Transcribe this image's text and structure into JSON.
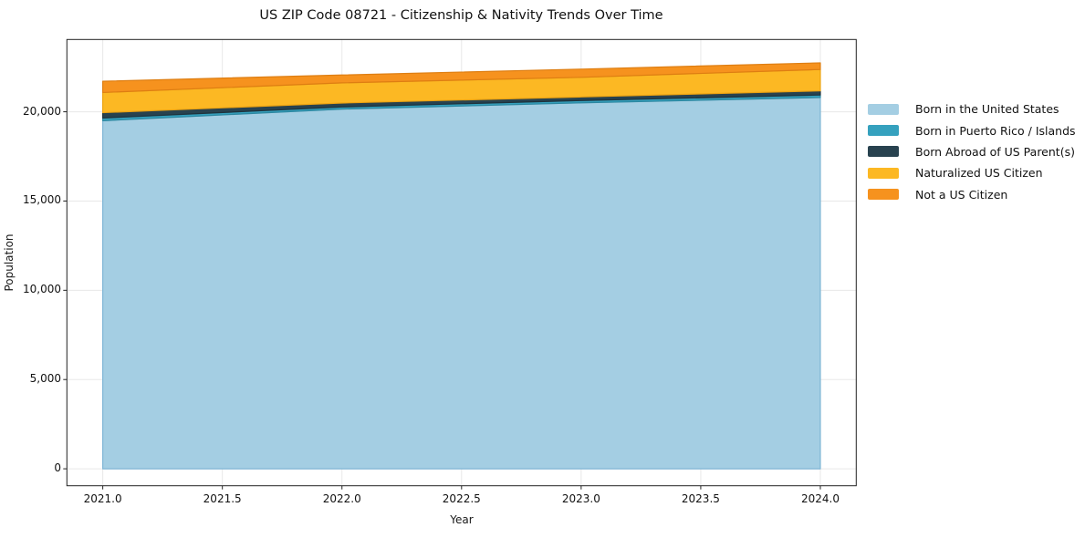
{
  "title": "US ZIP Code 08721 - Citizenship & Nativity Trends Over Time",
  "chart_data": {
    "type": "area",
    "stacked": true,
    "title": "US ZIP Code 08721 - Citizenship & Nativity Trends Over Time",
    "xlabel": "Year",
    "ylabel": "Population",
    "x": [
      2021,
      2022,
      2023,
      2024
    ],
    "series": [
      {
        "name": "Born in the United States",
        "color": "#A4CEE3",
        "edge": "#7FB6D5",
        "values": [
          19500,
          20150,
          20500,
          20800
        ]
      },
      {
        "name": "Born in Puerto Rico / Islands",
        "color": "#35A1BE",
        "edge": "#2B87A0",
        "values": [
          150,
          120,
          130,
          140
        ]
      },
      {
        "name": "Born Abroad of US Parent(s)",
        "color": "#28424F",
        "edge": "#1E333D",
        "values": [
          300,
          220,
          200,
          230
        ]
      },
      {
        "name": "Naturalized US Citizen",
        "color": "#FCB823",
        "edge": "#ECA313",
        "values": [
          1130,
          1130,
          1100,
          1200
        ]
      },
      {
        "name": "Not a US Citizen",
        "color": "#F6921E",
        "edge": "#DE7E12",
        "values": [
          630,
          440,
          460,
          370
        ]
      }
    ],
    "totals": [
      21710,
      22060,
      22390,
      22740
    ],
    "xlim": [
      2020.85,
      2024.15
    ],
    "ylim": [
      -950,
      24050
    ],
    "xticks": {
      "values": [
        2021.0,
        2021.5,
        2022.0,
        2022.5,
        2023.0,
        2023.5,
        2024.0
      ],
      "labels": [
        "2021.0",
        "2021.5",
        "2022.0",
        "2022.5",
        "2023.0",
        "2023.5",
        "2024.0"
      ]
    },
    "yticks": {
      "values": [
        0,
        5000,
        10000,
        15000,
        20000
      ],
      "labels": [
        "0",
        "5,000",
        "10,000",
        "15,000",
        "20,000"
      ]
    },
    "grid": true,
    "grid_color": "#e8e8e8",
    "spine_color": "#222222",
    "background_color": "#ffffff",
    "legend_position": "outside-right"
  }
}
